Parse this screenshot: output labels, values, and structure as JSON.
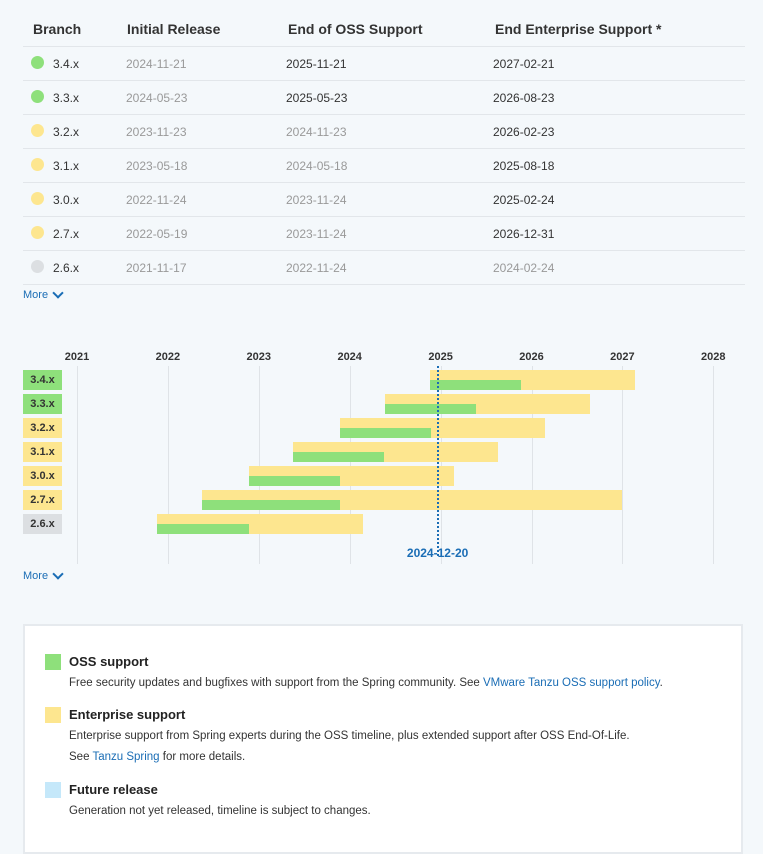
{
  "table": {
    "headers": [
      "Branch",
      "Initial Release",
      "End of OSS Support",
      "End Enterprise Support *"
    ],
    "rows": [
      {
        "branch": "3.4.x",
        "status": "green",
        "initial": "2024-11-21",
        "oss": "2025-11-21",
        "oss_muted": false,
        "ent": "2027-02-21",
        "ent_muted": false
      },
      {
        "branch": "3.3.x",
        "status": "green",
        "initial": "2024-05-23",
        "oss": "2025-05-23",
        "oss_muted": false,
        "ent": "2026-08-23",
        "ent_muted": false
      },
      {
        "branch": "3.2.x",
        "status": "yellow",
        "initial": "2023-11-23",
        "oss": "2024-11-23",
        "oss_muted": true,
        "ent": "2026-02-23",
        "ent_muted": false
      },
      {
        "branch": "3.1.x",
        "status": "yellow",
        "initial": "2023-05-18",
        "oss": "2024-05-18",
        "oss_muted": true,
        "ent": "2025-08-18",
        "ent_muted": false
      },
      {
        "branch": "3.0.x",
        "status": "yellow",
        "initial": "2022-11-24",
        "oss": "2023-11-24",
        "oss_muted": true,
        "ent": "2025-02-24",
        "ent_muted": false
      },
      {
        "branch": "2.7.x",
        "status": "yellow",
        "initial": "2022-05-19",
        "oss": "2023-11-24",
        "oss_muted": true,
        "ent": "2026-12-31",
        "ent_muted": false
      },
      {
        "branch": "2.6.x",
        "status": "gray",
        "initial": "2021-11-17",
        "oss": "2022-11-24",
        "oss_muted": true,
        "ent": "2024-02-24",
        "ent_muted": true
      }
    ],
    "more_label": "More"
  },
  "timeline": {
    "years": [
      "2021",
      "2022",
      "2023",
      "2024",
      "2025",
      "2026",
      "2027",
      "2028"
    ],
    "today": "2024-12-20",
    "more_label": "More",
    "branches": [
      {
        "label": "3.4.x",
        "status": "green",
        "start": "2024-11-21",
        "oss_end": "2025-11-21",
        "ent_end": "2027-02-21"
      },
      {
        "label": "3.3.x",
        "status": "green",
        "start": "2024-05-23",
        "oss_end": "2025-05-23",
        "ent_end": "2026-08-23"
      },
      {
        "label": "3.2.x",
        "status": "yellow",
        "start": "2023-11-23",
        "oss_end": "2024-11-23",
        "ent_end": "2026-02-23"
      },
      {
        "label": "3.1.x",
        "status": "yellow",
        "start": "2023-05-18",
        "oss_end": "2024-05-18",
        "ent_end": "2025-08-18"
      },
      {
        "label": "3.0.x",
        "status": "yellow",
        "start": "2022-11-24",
        "oss_end": "2023-11-24",
        "ent_end": "2025-02-24"
      },
      {
        "label": "2.7.x",
        "status": "yellow",
        "start": "2022-05-19",
        "oss_end": "2023-11-24",
        "ent_end": "2026-12-31"
      },
      {
        "label": "2.6.x",
        "status": "gray",
        "start": "2021-11-17",
        "oss_end": "2022-11-24",
        "ent_end": "2024-02-24"
      }
    ]
  },
  "legend": {
    "oss": {
      "title": "OSS support",
      "desc_prefix": "Free security updates and bugfixes with support from the Spring community. See ",
      "link": "VMware Tanzu OSS support policy",
      "desc_suffix": "."
    },
    "enterprise": {
      "title": "Enterprise support",
      "desc_line1": "Enterprise support from Spring experts during the OSS timeline, plus extended support after OSS End-Of-Life.",
      "desc_line2_prefix": "See ",
      "link": "Tanzu Spring",
      "desc_line2_suffix": " for more details."
    },
    "future": {
      "title": "Future release",
      "desc": "Generation not yet released, timeline is subject to changes."
    }
  },
  "colors": {
    "green": "#8ee07b",
    "yellow": "#fde68f",
    "gray": "#dcdfe2",
    "future": "#c5e8fa",
    "link": "#1a6db5"
  }
}
